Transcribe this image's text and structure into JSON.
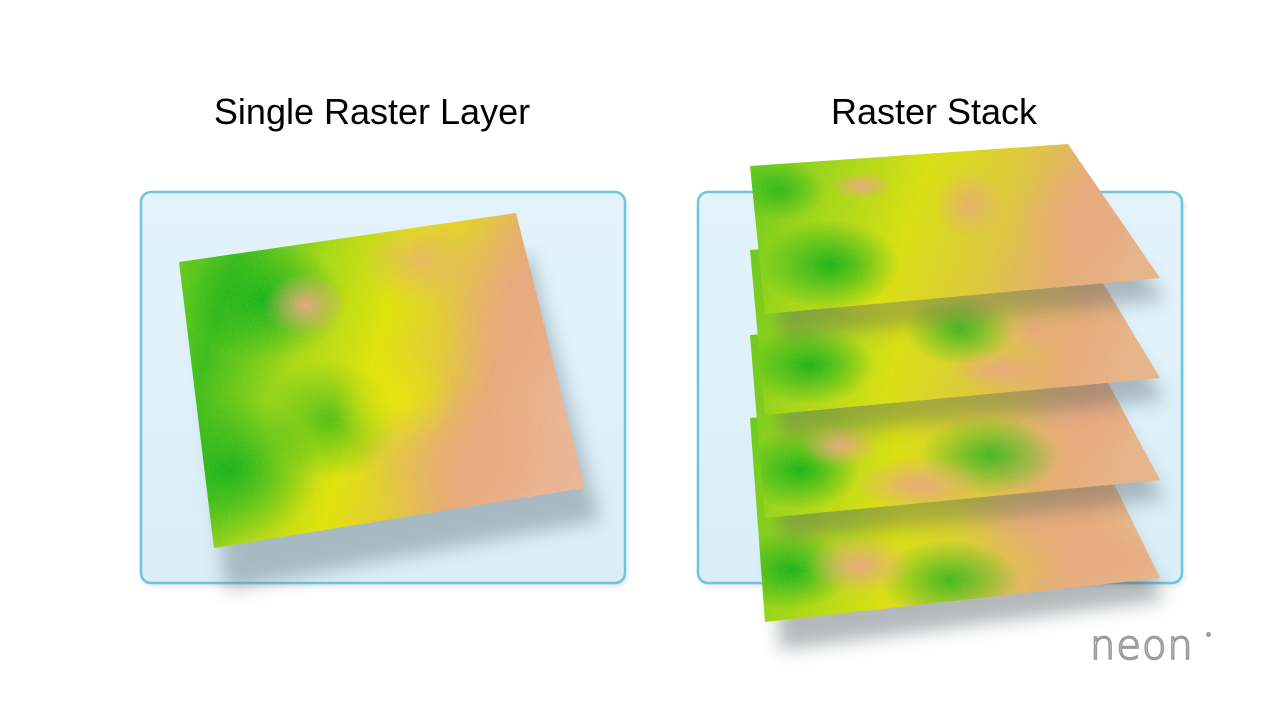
{
  "diagram": {
    "left_panel": {
      "title": "Single Raster Layer",
      "layer_count": 1
    },
    "right_panel": {
      "title": "Raster Stack",
      "layer_count": 4
    }
  },
  "logo": {
    "text": "neon"
  },
  "colors": {
    "panel_fill": "#dff0f8",
    "panel_border": "#6cc6de",
    "raster_green": "#25b81c",
    "raster_yellow": "#dfe20c",
    "raster_salmon": "#e6aa78"
  }
}
